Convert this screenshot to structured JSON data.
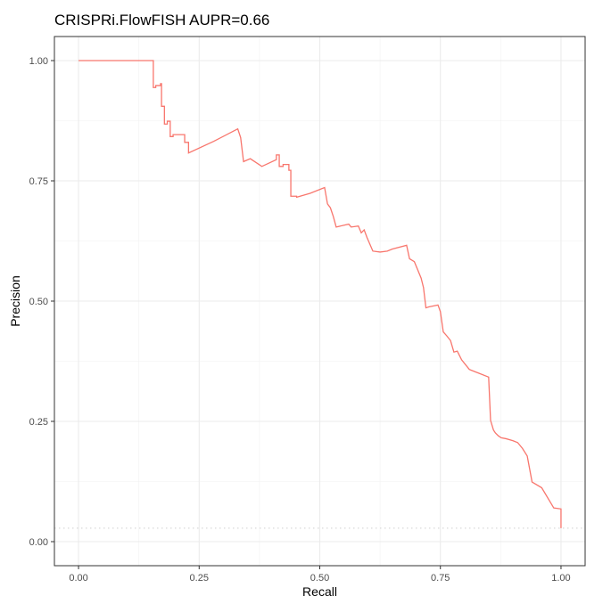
{
  "chart_data": {
    "type": "line",
    "title": "CRISPRi.FlowFISH AUPR=0.66",
    "xlabel": "Recall",
    "ylabel": "Precision",
    "xlim": [
      -0.05,
      1.05
    ],
    "ylim": [
      -0.05,
      1.05
    ],
    "x_ticks": [
      0.0,
      0.25,
      0.5,
      0.75,
      1.0
    ],
    "x_tick_labels": [
      "0.00",
      "0.25",
      "0.50",
      "0.75",
      "1.00"
    ],
    "y_ticks": [
      0.0,
      0.25,
      0.5,
      0.75,
      1.0
    ],
    "y_tick_labels": [
      "0.00",
      "0.25",
      "0.50",
      "0.75",
      "1.00"
    ],
    "grid": true,
    "legend": "none",
    "baseline": {
      "y": 0.028,
      "style": "dotted",
      "color": "#d9d9d9"
    },
    "series": [
      {
        "color": "#f8766d",
        "x": [
          0.0,
          0.155,
          0.155,
          0.16,
          0.16,
          0.17,
          0.17,
          0.172,
          0.172,
          0.178,
          0.178,
          0.184,
          0.184,
          0.19,
          0.19,
          0.196,
          0.196,
          0.22,
          0.22,
          0.228,
          0.228,
          0.28,
          0.33,
          0.33,
          0.336,
          0.336,
          0.342,
          0.342,
          0.356,
          0.356,
          0.38,
          0.41,
          0.41,
          0.416,
          0.416,
          0.424,
          0.424,
          0.436,
          0.436,
          0.44,
          0.44,
          0.452,
          0.452,
          0.48,
          0.51,
          0.51,
          0.516,
          0.516,
          0.522,
          0.522,
          0.528,
          0.528,
          0.534,
          0.534,
          0.56,
          0.56,
          0.565,
          0.565,
          0.58,
          0.58,
          0.586,
          0.586,
          0.592,
          0.592,
          0.598,
          0.598,
          0.604,
          0.604,
          0.61,
          0.61,
          0.625,
          0.625,
          0.64,
          0.65,
          0.68,
          0.68,
          0.686,
          0.686,
          0.696,
          0.696,
          0.71,
          0.71,
          0.715,
          0.715,
          0.72,
          0.72,
          0.726,
          0.726,
          0.745,
          0.745,
          0.75,
          0.75,
          0.756,
          0.756,
          0.763,
          0.763,
          0.771,
          0.771,
          0.778,
          0.778,
          0.785,
          0.785,
          0.794,
          0.794,
          0.81,
          0.81,
          0.82,
          0.82,
          0.83,
          0.83,
          0.85,
          0.85,
          0.854,
          0.854,
          0.86,
          0.86,
          0.864,
          0.864,
          0.87,
          0.87,
          0.876,
          0.876,
          0.886,
          0.886,
          0.9,
          0.9,
          0.91,
          0.91,
          0.92,
          0.92,
          0.93,
          0.93,
          0.94,
          0.94,
          0.96,
          0.96,
          0.985,
          0.985,
          1.0,
          1.0
        ],
        "y": [
          1.0,
          1.0,
          0.944,
          0.944,
          0.948,
          0.948,
          0.952,
          0.952,
          0.905,
          0.905,
          0.868,
          0.868,
          0.874,
          0.874,
          0.842,
          0.842,
          0.846,
          0.846,
          0.83,
          0.83,
          0.808,
          0.832,
          0.858,
          0.858,
          0.84,
          0.84,
          0.79,
          0.79,
          0.796,
          0.796,
          0.78,
          0.794,
          0.804,
          0.804,
          0.78,
          0.78,
          0.784,
          0.784,
          0.772,
          0.772,
          0.718,
          0.718,
          0.716,
          0.724,
          0.736,
          0.736,
          0.702,
          0.702,
          0.694,
          0.694,
          0.676,
          0.676,
          0.654,
          0.654,
          0.66,
          0.66,
          0.654,
          0.654,
          0.656,
          0.656,
          0.642,
          0.642,
          0.648,
          0.648,
          0.632,
          0.632,
          0.618,
          0.618,
          0.604,
          0.604,
          0.602,
          0.602,
          0.604,
          0.608,
          0.616,
          0.616,
          0.588,
          0.588,
          0.582,
          0.582,
          0.548,
          0.548,
          0.528,
          0.528,
          0.486,
          0.486,
          0.488,
          0.488,
          0.492,
          0.492,
          0.478,
          0.478,
          0.436,
          0.436,
          0.428,
          0.428,
          0.418,
          0.418,
          0.394,
          0.394,
          0.396,
          0.396,
          0.378,
          0.378,
          0.358,
          0.358,
          0.354,
          0.354,
          0.35,
          0.35,
          0.342,
          0.342,
          0.252,
          0.252,
          0.232,
          0.232,
          0.226,
          0.226,
          0.22,
          0.22,
          0.216,
          0.216,
          0.214,
          0.214,
          0.21,
          0.21,
          0.206,
          0.206,
          0.194,
          0.194,
          0.178,
          0.178,
          0.124,
          0.124,
          0.112,
          0.112,
          0.07,
          0.07,
          0.068,
          0.028
        ]
      }
    ]
  }
}
